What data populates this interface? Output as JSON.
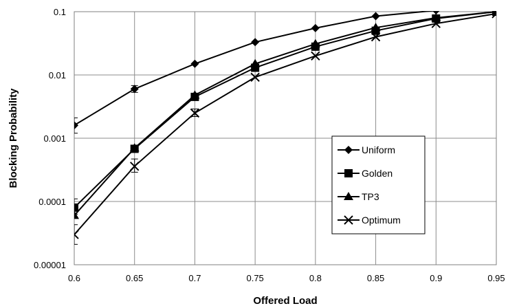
{
  "chart_data": {
    "type": "line",
    "title": "",
    "xlabel": "Offered Load",
    "ylabel": "Blocking Probability",
    "x": [
      0.6,
      0.65,
      0.7,
      0.75,
      0.8,
      0.85,
      0.9,
      0.95
    ],
    "x_ticks": [
      "0.6",
      "0.65",
      "0.7",
      "0.75",
      "0.8",
      "0.85",
      "0.9",
      "0.95"
    ],
    "y_ticks": [
      "0.00001",
      "0.0001",
      "0.001",
      "0.01",
      "0.1"
    ],
    "xlim": [
      0.6,
      0.95
    ],
    "ylim": [
      1e-05,
      0.1
    ],
    "y_scale": "log",
    "grid": true,
    "legend_position": "inside-right",
    "series": [
      {
        "name": "Uniform",
        "marker": "diamond",
        "x": [
          0.6,
          0.65,
          0.7,
          0.75,
          0.8,
          0.85,
          0.9
        ],
        "values": [
          0.0016,
          0.006,
          0.015,
          0.033,
          0.055,
          0.085,
          0.105
        ],
        "error": [
          [
            0.0012,
            0.0021
          ],
          [
            0.0053,
            0.0068
          ],
          null,
          null,
          null,
          null,
          null
        ]
      },
      {
        "name": "Golden",
        "marker": "square",
        "x": [
          0.6,
          0.65,
          0.7,
          0.75,
          0.8,
          0.85,
          0.9,
          0.95
        ],
        "values": [
          8e-05,
          0.00068,
          0.0045,
          0.013,
          0.028,
          0.05,
          0.078,
          0.1
        ],
        "error": [
          [
            6.3e-05,
            0.00011
          ],
          [
            0.00062,
            0.00074
          ],
          null,
          null,
          null,
          null,
          null,
          null
        ]
      },
      {
        "name": "TP3",
        "marker": "triangle",
        "x": [
          0.6,
          0.65,
          0.7,
          0.75,
          0.8,
          0.85,
          0.9,
          0.95
        ],
        "values": [
          6e-05,
          0.0007,
          0.0048,
          0.015,
          0.031,
          0.056,
          0.08,
          0.1
        ],
        "error": [
          null,
          null,
          null,
          null,
          null,
          null,
          null,
          null
        ]
      },
      {
        "name": "Optimum",
        "marker": "x",
        "x": [
          0.6,
          0.65,
          0.7,
          0.75,
          0.8,
          0.85,
          0.9,
          0.95
        ],
        "values": [
          3e-05,
          0.00036,
          0.0025,
          0.0092,
          0.02,
          0.04,
          0.065,
          0.093
        ],
        "error": [
          [
            2.1e-05,
            4.3e-05
          ],
          [
            0.00029,
            0.00047
          ],
          [
            0.0022,
            0.0029
          ],
          null,
          null,
          null,
          null,
          null
        ]
      }
    ]
  }
}
